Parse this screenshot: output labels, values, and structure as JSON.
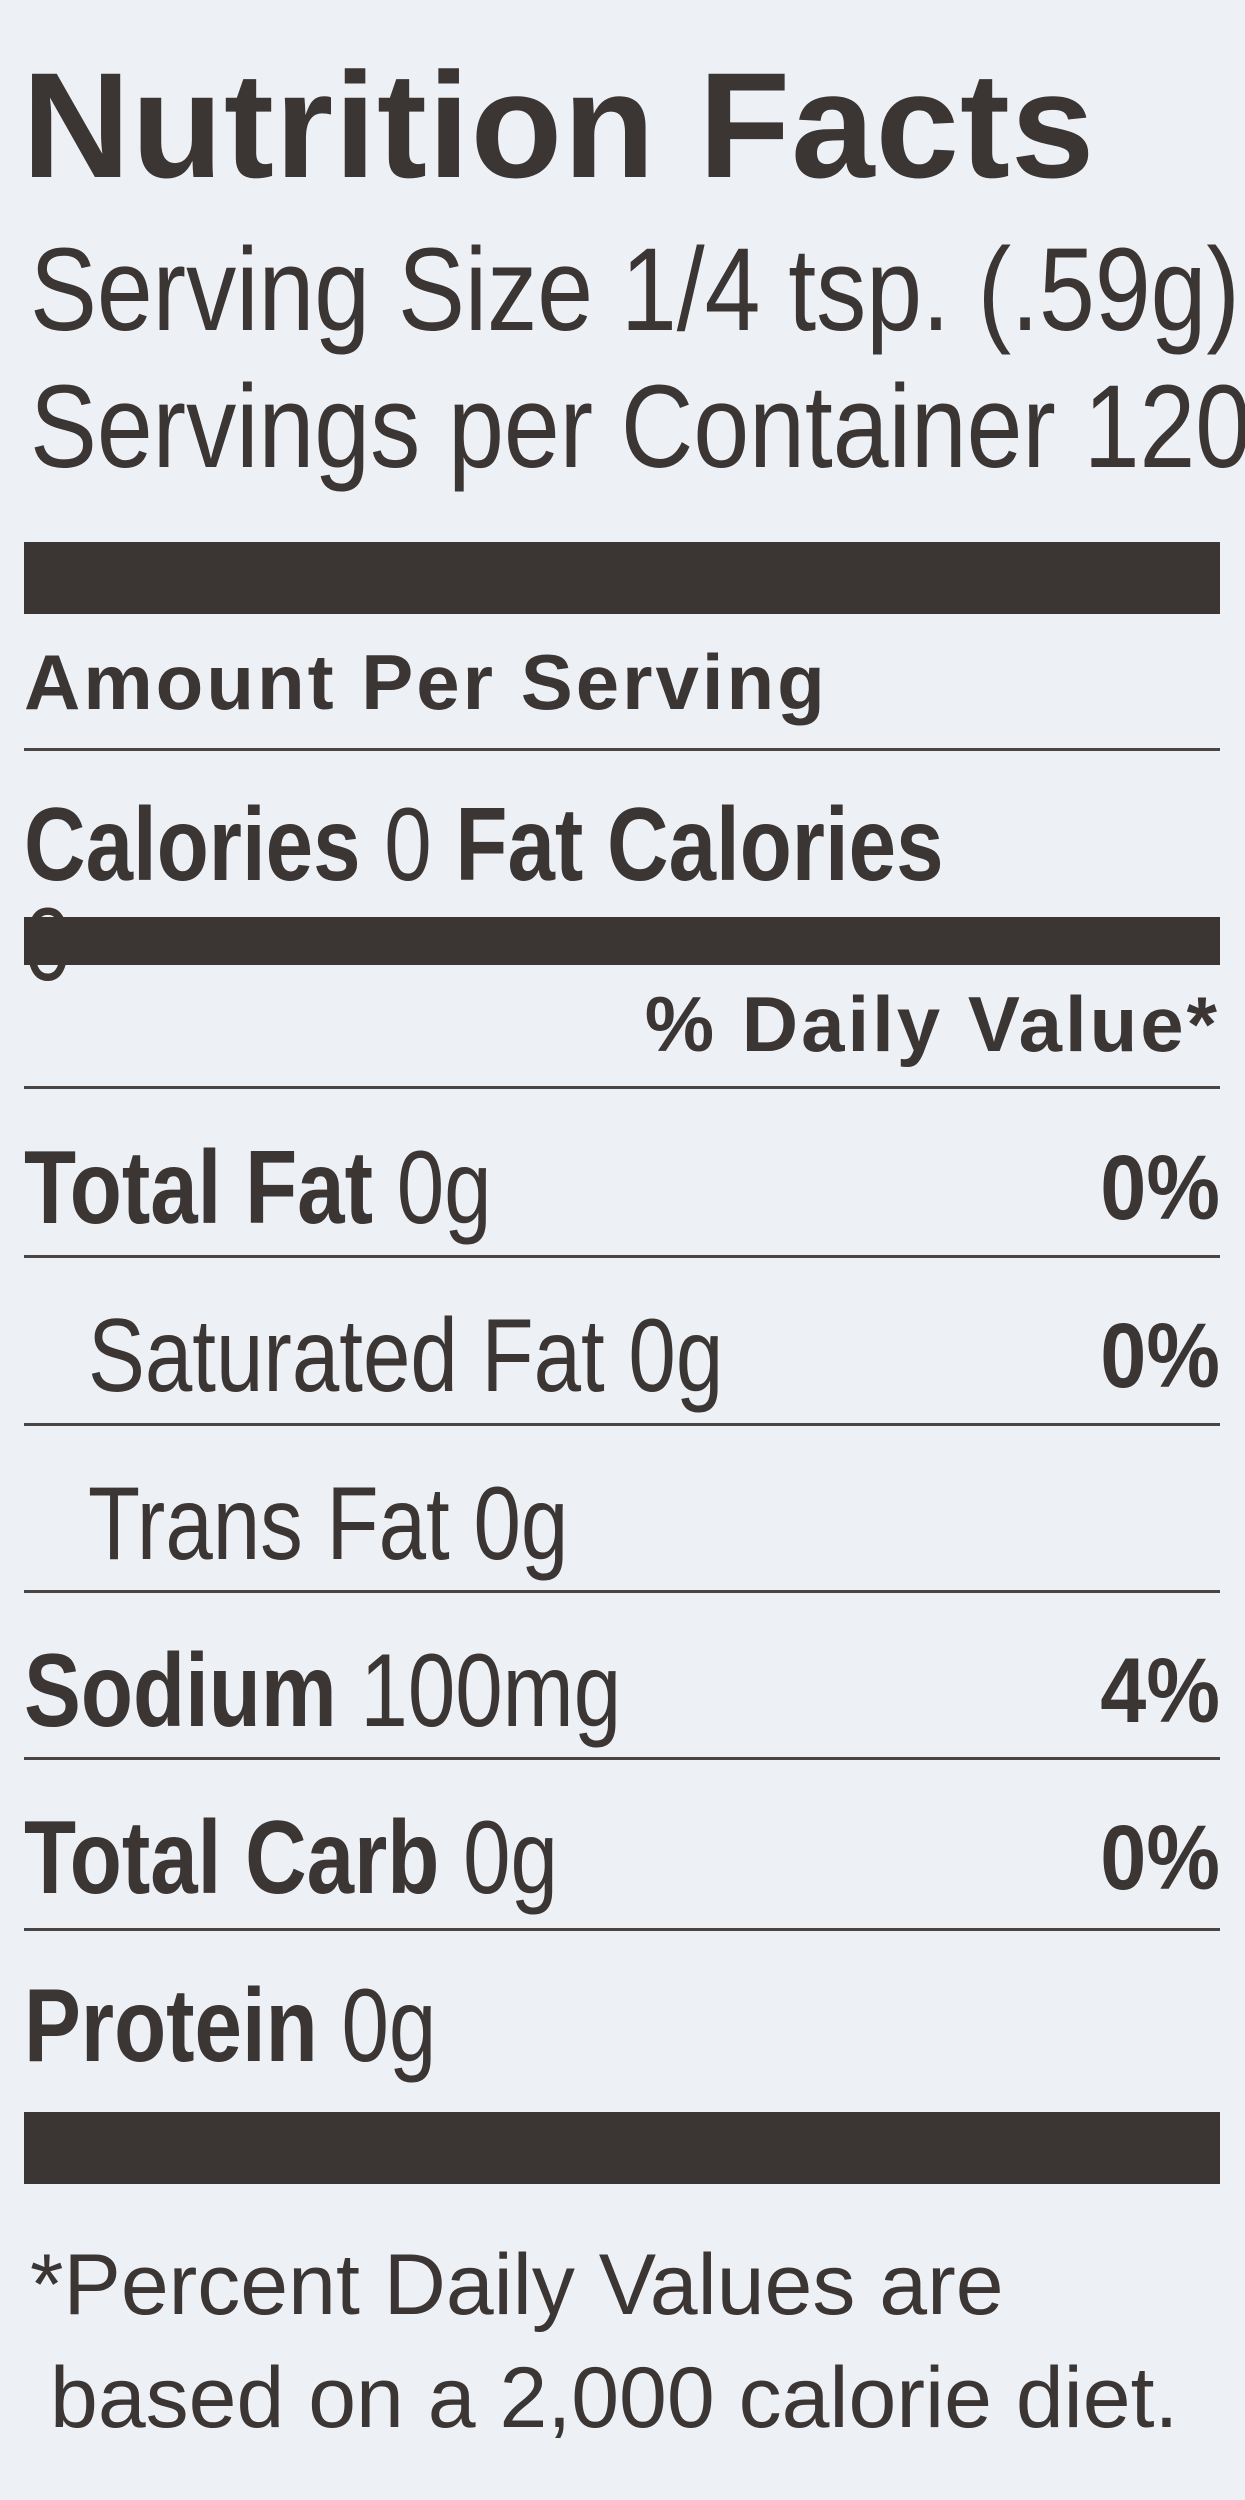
{
  "title": "Nutrition Facts",
  "serving_size": {
    "label": "Serving Size",
    "value": "1/4 tsp. (.59g)"
  },
  "servings_per_container": {
    "label": "Servings per Container",
    "value": "120"
  },
  "amount_per_serving": "Amount Per Serving",
  "calories": {
    "label": "Calories",
    "value": "0",
    "fat_label": "Fat Calories",
    "fat_value": "0"
  },
  "daily_value_header": "% Daily Value*",
  "nutrients": [
    {
      "name": "Total Fat",
      "amount": "0g",
      "dv": "0%"
    },
    {
      "name": "Saturated Fat",
      "amount": "0g",
      "dv": "0%"
    },
    {
      "name": "Trans Fat",
      "amount": "0g",
      "dv": ""
    },
    {
      "name": "Sodium",
      "amount": "100mg",
      "dv": "4%"
    },
    {
      "name": "Total Carb",
      "amount": "0g",
      "dv": "0%"
    },
    {
      "name": "Protein",
      "amount": "0g",
      "dv": ""
    }
  ],
  "footnote": [
    "*Percent Daily Values are",
    "based on a 2,000 calorie diet."
  ]
}
